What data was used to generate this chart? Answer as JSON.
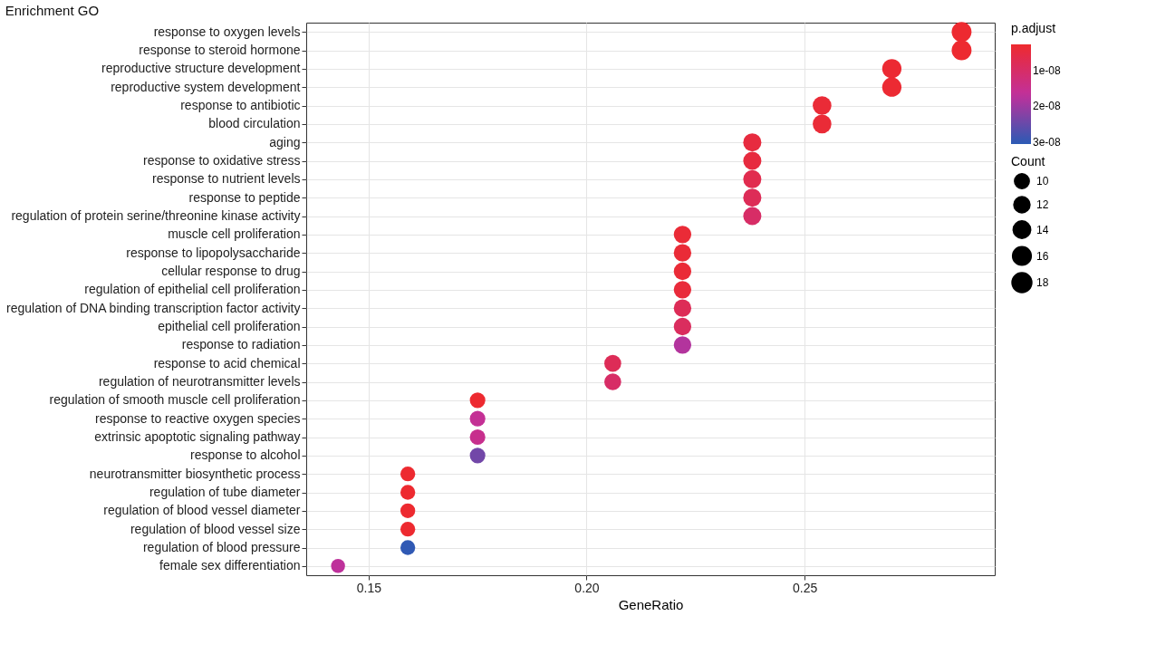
{
  "chart_data": {
    "type": "bubble",
    "title": "Enrichment GO",
    "xlabel": "GeneRatio",
    "grid": true,
    "orientation": "horizontal",
    "categories": [
      "response to oxygen levels",
      "response to steroid hormone",
      "reproductive structure development",
      "reproductive system development",
      "response to antibiotic",
      "blood circulation",
      "aging",
      "response to oxidative stress",
      "response to nutrient levels",
      "response to peptide",
      "regulation of protein serine/threonine kinase activity",
      "muscle cell proliferation",
      "response to lipopolysaccharide",
      "cellular response to drug",
      "regulation of epithelial cell proliferation",
      "regulation of DNA binding transcription factor activity",
      "epithelial cell proliferation",
      "response to radiation",
      "response to acid chemical",
      "regulation of neurotransmitter levels",
      "regulation of smooth muscle cell proliferation",
      "response to reactive oxygen species",
      "extrinsic apoptotic signaling pathway",
      "response to alcohol",
      "neurotransmitter biosynthetic process",
      "regulation of tube diameter",
      "regulation of blood vessel diameter",
      "regulation of blood vessel size",
      "regulation of blood pressure",
      "female sex differentiation"
    ],
    "values": [
      0.286,
      0.286,
      0.27,
      0.27,
      0.254,
      0.254,
      0.238,
      0.238,
      0.238,
      0.238,
      0.238,
      0.222,
      0.222,
      0.222,
      0.222,
      0.222,
      0.222,
      0.222,
      0.206,
      0.206,
      0.175,
      0.175,
      0.175,
      0.175,
      0.159,
      0.159,
      0.159,
      0.159,
      0.159,
      0.143
    ],
    "sizes": [
      18,
      18,
      17,
      17,
      16,
      16,
      15,
      15,
      15,
      15,
      15,
      14,
      14,
      14,
      14,
      14,
      14,
      14,
      13,
      13,
      11,
      11,
      11,
      11,
      10,
      10,
      10,
      10,
      10,
      9
    ],
    "size_legend": [
      10,
      12,
      14,
      16,
      18
    ],
    "legend_title": "Count",
    "cvalues": [
      3e-09,
      3e-09,
      3.5e-09,
      3.5e-09,
      4e-09,
      4e-09,
      5e-09,
      5e-09,
      7e-09,
      8e-09,
      1e-08,
      4e-09,
      4e-09,
      4e-09,
      4.5e-09,
      8e-09,
      9e-09,
      1.8e-08,
      8e-09,
      1e-08,
      3e-09,
      1.6e-08,
      1.5e-08,
      2.4e-08,
      3e-09,
      3e-09,
      3e-09,
      3e-09,
      3e-08,
      1.7e-08
    ],
    "clabel": "p.adjust",
    "clim": [
      3.05e-08,
      2.8e-09
    ],
    "cticks": [
      {
        "value": 1e-08,
        "label": "1e-08"
      },
      {
        "value": 2e-08,
        "label": "2e-08"
      },
      {
        "value": 3e-08,
        "label": "3e-08"
      }
    ],
    "xlim": [
      0.1357,
      0.2936
    ],
    "xticks": [
      {
        "value": 0.15,
        "label": "0.15"
      },
      {
        "value": 0.2,
        "label": "0.20"
      },
      {
        "value": 0.25,
        "label": "0.25"
      }
    ]
  }
}
